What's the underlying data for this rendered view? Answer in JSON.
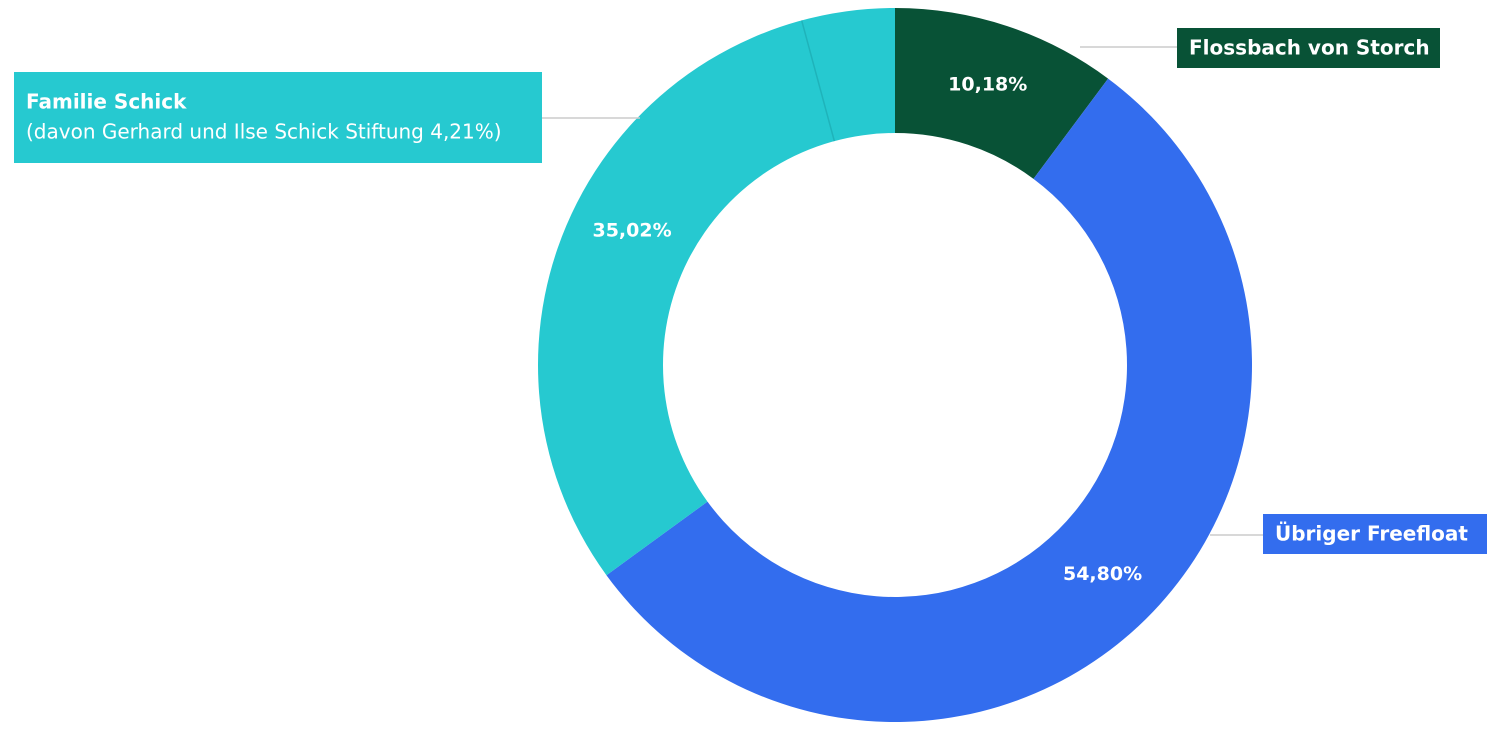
{
  "chart_data": {
    "type": "donut",
    "categories": [
      "Flossbach von Storch",
      "Übriger Freefloat",
      "Familie Schick"
    ],
    "values": [
      10.18,
      54.8,
      35.02
    ],
    "value_labels": [
      "10,18%",
      "54,80%",
      "35,02%"
    ],
    "colors": [
      "#085236",
      "#336dee",
      "#26c9d0"
    ],
    "sub_segment": {
      "value": 4.21,
      "label": "(davon Gerhard und Ilse Schick Stiftung 4,21%)"
    }
  }
}
